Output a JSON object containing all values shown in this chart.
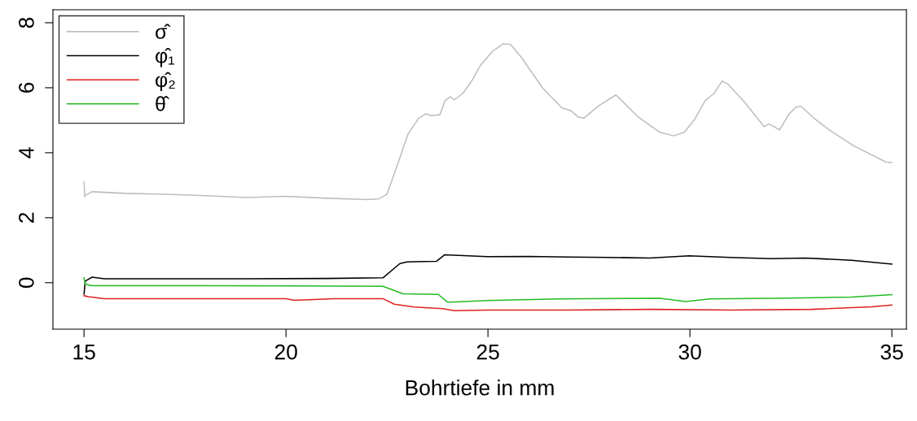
{
  "chart_data": {
    "type": "line",
    "xlabel": "Bohrtiefe in mm",
    "xlim": [
      14.23,
      35.36
    ],
    "xticks": [
      15,
      20,
      25,
      30,
      35
    ],
    "ylim": [
      -1.43,
      8.4
    ],
    "yticks": [
      0,
      2,
      4,
      6,
      8
    ],
    "grid": false,
    "legend": "top left",
    "marker": "none",
    "line_style": "solid",
    "series": [
      {
        "name": "σ̂",
        "color": "#bebebe",
        "x": [
          15.0,
          15.02,
          15.05,
          15.2,
          16.0,
          17.0,
          18.0,
          19.0,
          20.0,
          21.0,
          22.0,
          22.3,
          22.5,
          22.66,
          22.84,
          23.02,
          23.29,
          23.47,
          23.59,
          23.81,
          23.94,
          24.07,
          24.17,
          24.38,
          24.6,
          24.82,
          25.12,
          25.38,
          25.56,
          25.83,
          26.35,
          26.83,
          27.06,
          27.23,
          27.38,
          27.75,
          28.17,
          28.72,
          29.25,
          29.6,
          29.86,
          30.12,
          30.38,
          30.6,
          30.8,
          30.95,
          31.35,
          31.84,
          31.96,
          32.22,
          32.44,
          32.62,
          32.75,
          33.1,
          33.45,
          34.07,
          34.86,
          35.0
        ],
        "values": [
          3.1,
          2.65,
          2.7,
          2.8,
          2.75,
          2.72,
          2.68,
          2.62,
          2.66,
          2.6,
          2.56,
          2.58,
          2.72,
          3.28,
          3.92,
          4.57,
          5.07,
          5.2,
          5.14,
          5.17,
          5.61,
          5.72,
          5.63,
          5.83,
          6.21,
          6.7,
          7.13,
          7.35,
          7.33,
          6.93,
          6.0,
          5.38,
          5.29,
          5.1,
          5.07,
          5.45,
          5.78,
          5.1,
          4.63,
          4.52,
          4.63,
          5.03,
          5.61,
          5.83,
          6.21,
          6.1,
          5.56,
          4.8,
          4.89,
          4.7,
          5.17,
          5.4,
          5.43,
          5.03,
          4.7,
          4.2,
          3.71,
          3.7
        ]
      },
      {
        "name": "φ̂₁",
        "color": "#000000",
        "x": [
          15.0,
          15.03,
          15.1,
          15.2,
          15.5,
          17.0,
          19.0,
          21.0,
          22.4,
          22.82,
          23.0,
          23.73,
          23.93,
          24.98,
          26.0,
          27.0,
          28.0,
          29.0,
          29.98,
          31.0,
          32.0,
          32.86,
          34.0,
          35.0
        ],
        "values": [
          -0.35,
          0.05,
          0.1,
          0.17,
          0.12,
          0.12,
          0.12,
          0.13,
          0.15,
          0.59,
          0.64,
          0.66,
          0.86,
          0.8,
          0.81,
          0.79,
          0.78,
          0.76,
          0.83,
          0.78,
          0.74,
          0.76,
          0.69,
          0.57
        ]
      },
      {
        "name": "φ̂₂",
        "color": "#df2020",
        "x": [
          15.0,
          15.1,
          15.5,
          17.0,
          20.0,
          20.2,
          21.2,
          22.4,
          22.68,
          23.17,
          23.88,
          24.17,
          25.0,
          27.0,
          29.0,
          31.0,
          33.0,
          34.5,
          35.0
        ],
        "values": [
          -0.4,
          -0.43,
          -0.49,
          -0.49,
          -0.49,
          -0.54,
          -0.49,
          -0.49,
          -0.66,
          -0.75,
          -0.8,
          -0.86,
          -0.84,
          -0.84,
          -0.82,
          -0.84,
          -0.82,
          -0.74,
          -0.69
        ]
      },
      {
        "name": "θ̂",
        "color": "#22bb22",
        "x": [
          15.0,
          15.03,
          15.2,
          17.0,
          20.0,
          22.4,
          22.9,
          23.77,
          24.0,
          24.21,
          24.98,
          26.8,
          29.25,
          29.9,
          30.5,
          32.14,
          34.0,
          35.0
        ],
        "values": [
          0.15,
          -0.05,
          -0.09,
          -0.09,
          -0.1,
          -0.11,
          -0.34,
          -0.36,
          -0.6,
          -0.59,
          -0.55,
          -0.5,
          -0.48,
          -0.58,
          -0.5,
          -0.48,
          -0.44,
          -0.37
        ]
      }
    ]
  }
}
